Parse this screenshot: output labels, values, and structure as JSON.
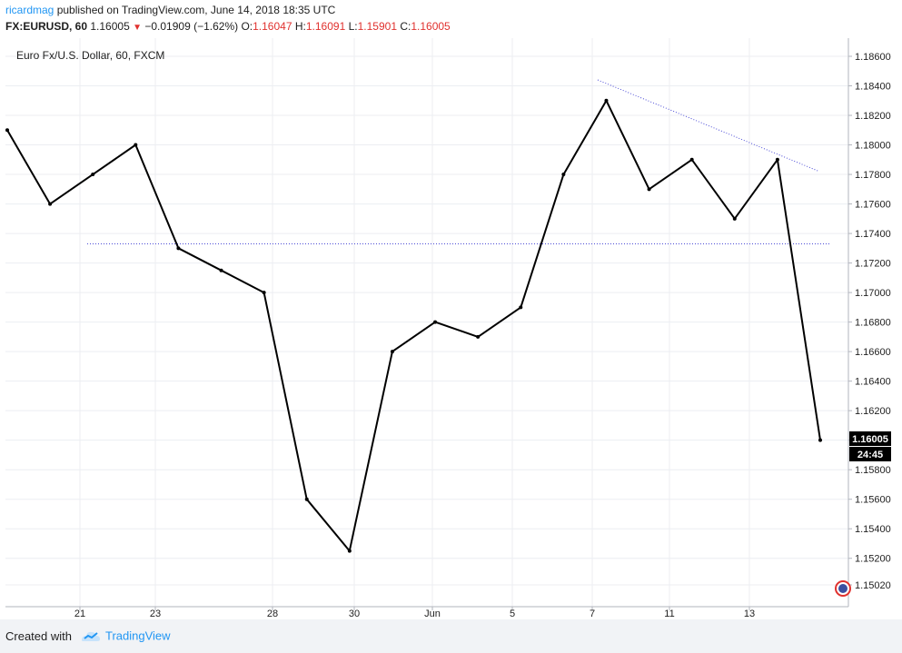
{
  "header": {
    "author": "ricardmag",
    "published_text": " published on TradingView.com, June 14, 2018 18:35 UTC",
    "symbol": "FX:EURUSD, 60",
    "last": "1.16005",
    "down_arrow": "▼",
    "change": "−0.01909 (−1.62%)",
    "o_label": "O:",
    "o_value": "1.16047",
    "h_label": "H:",
    "h_value": "1.16091",
    "l_label": "L:",
    "l_value": "1.15901",
    "c_label": "C:",
    "c_value": "1.16005"
  },
  "footer": {
    "created_with": "Created with",
    "brand": "TradingView",
    "logo_icon": "tradingview-cloud-logo-icon"
  },
  "colors": {
    "candles": "#000000",
    "trendline": "#4b4bd6",
    "grid": "#eceef2",
    "price_label_bg": "#000000",
    "brand": "#2196f3",
    "down": "#e0312e"
  },
  "chart_data": {
    "type": "line",
    "title": "Euro Fx/U.S. Dollar, 60, FXCM",
    "ylim": [
      1.5008,
      1.18695
    ],
    "ylim_note": "",
    "y_ticks": [
      "1.18600",
      "1.18400",
      "1.18200",
      "1.18000",
      "1.17800",
      "1.17600",
      "1.17400",
      "1.17200",
      "1.17000",
      "1.16800",
      "1.16600",
      "1.16400",
      "1.16200",
      "1.16000",
      "1.15800",
      "1.15600",
      "1.15400",
      "1.15200",
      "1.15020"
    ],
    "x_ticks": [
      "21",
      "23",
      "28",
      "30",
      "Jun",
      "5",
      "7",
      "11",
      "13"
    ],
    "last_price_label": "1.16005",
    "countdown_label": "24:45",
    "grid": true,
    "series": [
      {
        "x": [
          "May 18",
          "May 21",
          "May 22",
          "May 23",
          "May 24",
          "May 25",
          "May 28",
          "May 29",
          "May 30",
          "May 31",
          "Jun 1",
          "Jun 4",
          "Jun 5",
          "Jun 6",
          "Jun 7",
          "Jun 8",
          "Jun 11",
          "Jun 12",
          "Jun 13",
          "Jun 14"
        ],
        "values": [
          1.181,
          1.176,
          1.178,
          1.18,
          1.173,
          1.1715,
          1.17,
          1.156,
          1.1525,
          1.166,
          1.168,
          1.167,
          1.169,
          1.178,
          1.183,
          1.177,
          1.179,
          1.175,
          1.179,
          1.16
        ]
      }
    ],
    "annotations": [
      {
        "type": "horizontal-line",
        "value": 1.1733,
        "style": "dotted"
      },
      {
        "type": "trendline",
        "from": {
          "x": "Jun 7",
          "y": 1.1844
        },
        "to": {
          "x": "Jun 14",
          "y": 1.1782
        },
        "style": "dotted"
      }
    ]
  }
}
